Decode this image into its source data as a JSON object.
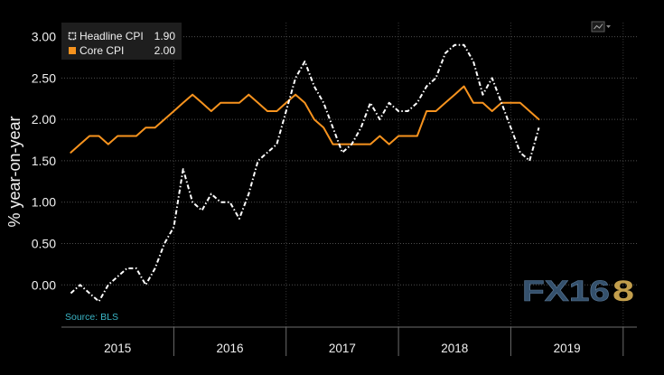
{
  "chart_data": {
    "type": "line",
    "ylabel": "% year-on-year",
    "ylim": [
      -0.51,
      3.17
    ],
    "yticks": [
      0,
      0.5,
      1,
      1.5,
      2,
      2.5,
      3
    ],
    "ytick_labels": [
      "0.00",
      "0.50",
      "1.00",
      "1.50",
      "2.00",
      "2.50",
      "3.00"
    ],
    "xlim": [
      "2015-01-01",
      "2020-02-15"
    ],
    "xtick_labels": [
      "2015",
      "2016",
      "2017",
      "2018",
      "2019"
    ],
    "grid": true,
    "legend_position": "top-left",
    "x": [
      "2015-01",
      "2015-02",
      "2015-03",
      "2015-04",
      "2015-05",
      "2015-06",
      "2015-07",
      "2015-08",
      "2015-09",
      "2015-10",
      "2015-11",
      "2015-12",
      "2016-01",
      "2016-02",
      "2016-03",
      "2016-04",
      "2016-05",
      "2016-06",
      "2016-07",
      "2016-08",
      "2016-09",
      "2016-10",
      "2016-11",
      "2016-12",
      "2017-01",
      "2017-02",
      "2017-03",
      "2017-04",
      "2017-05",
      "2017-06",
      "2017-07",
      "2017-08",
      "2017-09",
      "2017-10",
      "2017-11",
      "2017-12",
      "2018-01",
      "2018-02",
      "2018-03",
      "2018-04",
      "2018-05",
      "2018-06",
      "2018-07",
      "2018-08",
      "2018-09",
      "2018-10",
      "2018-11",
      "2018-12",
      "2019-01",
      "2019-02",
      "2019-03"
    ],
    "series": [
      {
        "name": "Headline CPI",
        "last_value": "1.90",
        "color": "#ffffff",
        "values": [
          -0.1,
          0.0,
          -0.1,
          -0.2,
          0.0,
          0.1,
          0.2,
          0.2,
          0.0,
          0.2,
          0.5,
          0.7,
          1.4,
          1.0,
          0.9,
          1.1,
          1.0,
          1.0,
          0.8,
          1.1,
          1.5,
          1.6,
          1.7,
          2.1,
          2.5,
          2.7,
          2.4,
          2.2,
          1.9,
          1.6,
          1.7,
          1.9,
          2.2,
          2.0,
          2.2,
          2.1,
          2.1,
          2.2,
          2.4,
          2.5,
          2.8,
          2.9,
          2.9,
          2.7,
          2.3,
          2.5,
          2.2,
          1.9,
          1.6,
          1.5,
          1.9
        ]
      },
      {
        "name": "Core CPI",
        "last_value": "2.00",
        "color": "#f7931e",
        "values": [
          1.6,
          1.7,
          1.8,
          1.8,
          1.7,
          1.8,
          1.8,
          1.8,
          1.9,
          1.9,
          2.0,
          2.1,
          2.2,
          2.3,
          2.2,
          2.1,
          2.2,
          2.2,
          2.2,
          2.3,
          2.2,
          2.1,
          2.1,
          2.2,
          2.3,
          2.2,
          2.0,
          1.9,
          1.7,
          1.7,
          1.7,
          1.7,
          1.7,
          1.8,
          1.7,
          1.8,
          1.8,
          1.8,
          2.1,
          2.1,
          2.2,
          2.3,
          2.4,
          2.2,
          2.2,
          2.1,
          2.2,
          2.2,
          2.2,
          2.1,
          2.0
        ]
      }
    ],
    "source": "Source: BLS"
  },
  "watermark": {
    "text_main": "FX16",
    "text_accent": "8",
    "main_color": "#34506c",
    "accent_color": "#c29e4c"
  },
  "colors": {
    "background": "#000000",
    "grid": "#4d4d4d",
    "axis": "#6b6b6b",
    "legend_bg": "#1e1e1e",
    "source_text": "#3ab5c6"
  },
  "toolbar": {
    "chart_menu_icon": "line-chart-icon"
  }
}
